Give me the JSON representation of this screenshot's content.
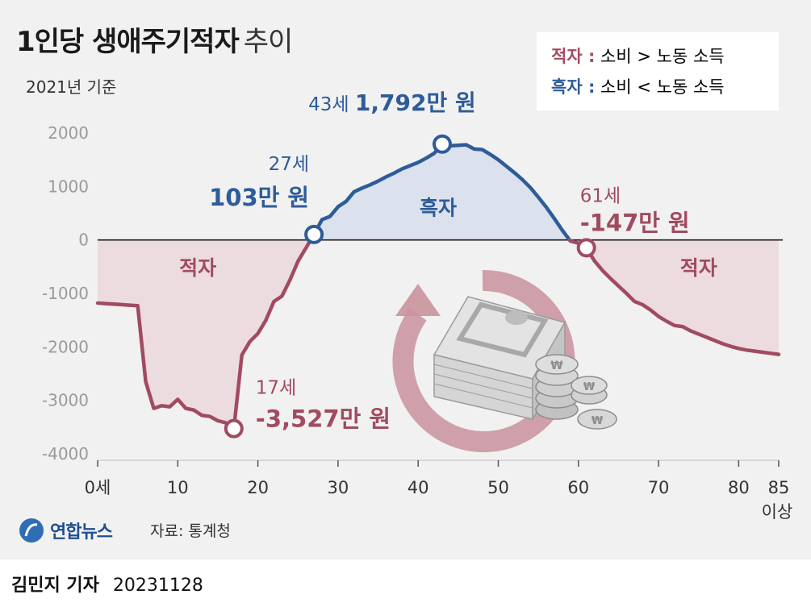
{
  "header": {
    "title_bold": "1인당 생애주기적자",
    "title_light": "추이",
    "subtitle": "2021년 기준"
  },
  "legend": {
    "deficit_key": "적자 :",
    "deficit_desc": "소비 > 노동 소득",
    "surplus_key": "흑자 :",
    "surplus_desc": "소비 < 노동 소득"
  },
  "colors": {
    "surplus_line": "#2e5c99",
    "deficit_line": "#a14b60",
    "surplus_fill": "#dbe1ed",
    "deficit_fill": "#ecdcdf",
    "axis_label": "#9a9a9a"
  },
  "chart_data": {
    "type": "line",
    "x_unit": "세",
    "y_unit": "만 원",
    "ylim": [
      -4000,
      2000
    ],
    "xlim": [
      0,
      85
    ],
    "y_ticks": [
      "2000",
      "1000",
      "0",
      "-1000",
      "-2000",
      "-3000",
      "-4000"
    ],
    "x_ticks": [
      {
        "x": 0,
        "label": "0세",
        "label2": ""
      },
      {
        "x": 10,
        "label": "10",
        "label2": ""
      },
      {
        "x": 20,
        "label": "20",
        "label2": ""
      },
      {
        "x": 30,
        "label": "30",
        "label2": ""
      },
      {
        "x": 40,
        "label": "40",
        "label2": ""
      },
      {
        "x": 50,
        "label": "50",
        "label2": ""
      },
      {
        "x": 60,
        "label": "60",
        "label2": ""
      },
      {
        "x": 70,
        "label": "70",
        "label2": ""
      },
      {
        "x": 80,
        "label": "80",
        "label2": ""
      },
      {
        "x": 85,
        "label": "85",
        "label2": "이상"
      }
    ],
    "series": [
      {
        "x": [
          0,
          1,
          2,
          3,
          4,
          5,
          6,
          7,
          8,
          9,
          10,
          11,
          12,
          13,
          14,
          15,
          16,
          17,
          18,
          19,
          20,
          21,
          22,
          23,
          24,
          25,
          26,
          27,
          28,
          29,
          30,
          31,
          32,
          33,
          34,
          35,
          36,
          37,
          38,
          39,
          40,
          41,
          42,
          43,
          44,
          45,
          46,
          47,
          48,
          49,
          50,
          51,
          52,
          53,
          54,
          55,
          56,
          57,
          58,
          59,
          60,
          61,
          62,
          63,
          64,
          65,
          66,
          67,
          68,
          69,
          70,
          71,
          72,
          73,
          74,
          75,
          76,
          77,
          78,
          79,
          80,
          81,
          82,
          83,
          84,
          85
        ],
        "values": [
          -1180,
          -1190,
          -1200,
          -1210,
          -1220,
          -1230,
          -2650,
          -3150,
          -3100,
          -3120,
          -2980,
          -3150,
          -3180,
          -3280,
          -3300,
          -3380,
          -3420,
          -3527,
          -2150,
          -1900,
          -1750,
          -1500,
          -1150,
          -1050,
          -750,
          -400,
          -150,
          103,
          380,
          440,
          620,
          720,
          900,
          970,
          1030,
          1100,
          1180,
          1250,
          1330,
          1390,
          1450,
          1530,
          1620,
          1792,
          1760,
          1770,
          1780,
          1700,
          1690,
          1600,
          1500,
          1380,
          1260,
          1130,
          980,
          800,
          610,
          400,
          180,
          -20,
          -60,
          -147,
          -390,
          -570,
          -720,
          -860,
          -1000,
          -1150,
          -1210,
          -1310,
          -1430,
          -1520,
          -1600,
          -1620,
          -1700,
          -1760,
          -1820,
          -1880,
          -1940,
          -1990,
          -2030,
          -2060,
          -2080,
          -2100,
          -2120,
          -2140
        ]
      }
    ],
    "region_labels": [
      {
        "x": 12.5,
        "y": -500,
        "label": "적자",
        "type": "deficit"
      },
      {
        "x": 42.5,
        "y": 620,
        "label": "흑자",
        "type": "surplus"
      },
      {
        "x": 75,
        "y": -500,
        "label": "적자",
        "type": "deficit"
      }
    ],
    "annotations": [
      {
        "x": 27,
        "y": 103,
        "age": "27세",
        "value": "103만 원",
        "type": "surplus",
        "anchor": "end"
      },
      {
        "x": 43,
        "y": 1792,
        "age": "43세",
        "value": "1,792만 원",
        "type": "surplus",
        "anchor": "middle"
      },
      {
        "x": 61,
        "y": -147,
        "age": "61세",
        "value": "-147만 원",
        "type": "deficit",
        "anchor": "start"
      },
      {
        "x": 17,
        "y": -3527,
        "age": "17세",
        "value": "-3,527만 원",
        "type": "deficit",
        "anchor": "start"
      }
    ]
  },
  "footer": {
    "logo": "연합뉴스",
    "source": "자료: 통계청",
    "author": "김민지 기자",
    "date": "20231128"
  }
}
